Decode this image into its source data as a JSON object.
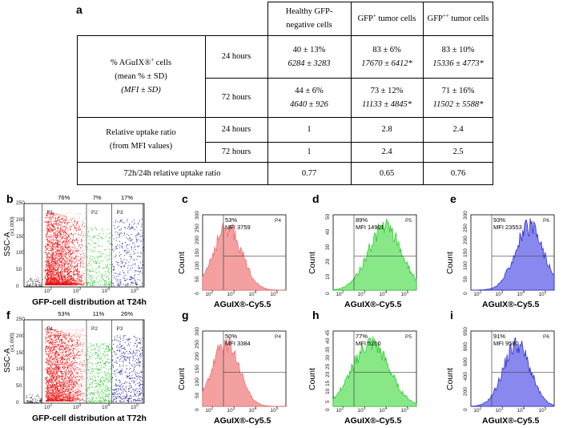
{
  "table": {
    "letter": "a",
    "headers": [
      "Healthy GFP-",
      "negative cells",
      "GFP",
      "+",
      " tumor cells",
      "GFP",
      "++",
      " tumor cells"
    ],
    "row1_label": [
      "% AGuIX®",
      "+",
      " cells",
      "(mean % ± SD)",
      "(MFI ± SD)"
    ],
    "time_24": "24 hours",
    "time_72": "72 hours",
    "r24": [
      [
        "40 ± 13%",
        "6284 ± 3283"
      ],
      [
        "83 ± 6%",
        "17670 ± 6412*"
      ],
      [
        "83 ± 10%",
        "15336 ± 4773*"
      ]
    ],
    "r72": [
      [
        "44 ± 6%",
        "4640 ± 926"
      ],
      [
        "73 ± 12%",
        "11133 ± 4845*"
      ],
      [
        "71 ± 16%",
        "11502 ± 5588*"
      ]
    ],
    "ratio_label": [
      "Relative uptake ratio",
      "(from MFI values)"
    ],
    "ratio24": [
      "1",
      "2.8",
      "2.4"
    ],
    "ratio72": [
      "1",
      "2.4",
      "2.5"
    ],
    "ratio_7224_label": "72h/24h relative uptake ratio",
    "ratio_7224": [
      "0.77",
      "0.65",
      "0.76"
    ]
  },
  "panels": {
    "b": {
      "letter": "b",
      "ylabel": "SSC-A",
      "yunit": "(x1,000)",
      "xlabel": "GFP-cell distribution at T24h",
      "gates": [
        "P1",
        "P2",
        "P3"
      ],
      "pcts": [
        "76%",
        "7%",
        "17%"
      ]
    },
    "f": {
      "letter": "f",
      "ylabel": "SSC-A",
      "yunit": "(x1,000)",
      "xlabel": "GFP-cell distribution at T72h",
      "gates": [
        "P1",
        "P2",
        "P3"
      ],
      "pcts": [
        "53%",
        "11%",
        "26%"
      ]
    },
    "c": {
      "letter": "c",
      "pct": "53%",
      "mfi": "MFI 3759",
      "gate": "P4",
      "color": "#f07070",
      "fill": "#f4a0a0"
    },
    "d": {
      "letter": "d",
      "pct": "89%",
      "mfi": "MFI 14901",
      "gate": "P5",
      "color": "#33cc33",
      "fill": "#88e888"
    },
    "e": {
      "letter": "e",
      "pct": "93%",
      "mfi": "MFI 23553",
      "gate": "P6",
      "color": "#3333cc",
      "fill": "#8888ee"
    },
    "g": {
      "letter": "g",
      "pct": "50%",
      "mfi": "MFI 3384",
      "gate": "P4",
      "color": "#f07070",
      "fill": "#f4a0a0"
    },
    "h": {
      "letter": "h",
      "pct": "77%",
      "mfi": "MFI 5160",
      "gate": "P5",
      "color": "#33cc33",
      "fill": "#88e888"
    },
    "i": {
      "letter": "i",
      "pct": "91%",
      "mfi": "MFI 9580",
      "gate": "P6",
      "color": "#3333cc",
      "fill": "#8888ee"
    },
    "hist_xlabel": "AGuIX®-Cy5.5",
    "hist_ylabel": "Count",
    "x_ticks": [
      "10",
      "2",
      "10",
      "3",
      "10",
      "4",
      "10",
      "5"
    ],
    "y_ticks_top": [
      "0",
      "50",
      "100",
      "150",
      "200",
      "250",
      "300"
    ],
    "y_ticks_d": [
      "0",
      "10",
      "20",
      "30",
      "40",
      "50"
    ],
    "y_ticks_e": [
      "0",
      "50",
      "100",
      "150",
      "200",
      "250",
      "300"
    ],
    "y_ticks_g": [
      "0",
      "50",
      "100",
      "150",
      "200",
      "250",
      "300"
    ],
    "y_ticks_h": [
      "0",
      "5",
      "10",
      "15",
      "20",
      "25",
      "30",
      "35",
      "40",
      "45"
    ],
    "y_ticks_i": [
      "0",
      "200",
      "400",
      "600",
      "800",
      "950"
    ],
    "dot_y_ticks": [
      "0",
      "50",
      "100",
      "150",
      "200",
      "250"
    ]
  },
  "colors": {
    "red": "#ee1111",
    "green": "#22cc22",
    "blue": "#2222aa",
    "black": "#000000"
  }
}
